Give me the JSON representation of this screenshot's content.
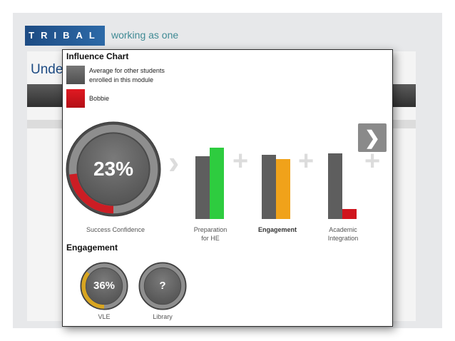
{
  "background": {
    "logo": "TRIBAL",
    "tagline": "working as one",
    "heading": "Unde"
  },
  "popup": {
    "title": "Influence Chart",
    "legend": [
      {
        "label_line1": "Average for other students",
        "label_line2": "enrolled in this module",
        "color": "#5f5f5f"
      },
      {
        "label_line1": "Bobbie",
        "label_line2": "",
        "color": "#d8161e"
      }
    ],
    "next_icon": "chevron-right-icon",
    "connector_arrow": "›",
    "connector_plus": "+",
    "success": {
      "value_text": "23%",
      "value": 0.23,
      "label": "Success Confidence",
      "arc_color": "#cc1d24"
    },
    "factors": [
      {
        "label_line1": "Preparation",
        "label_line2": "for HE",
        "bold": false,
        "average": 0.88,
        "student": 1.0,
        "student_color": "#2ecc3f"
      },
      {
        "label_line1": "Engagement",
        "label_line2": "",
        "bold": true,
        "average": 0.9,
        "student": 0.84,
        "student_color": "#f0a21a"
      },
      {
        "label_line1": "Academic",
        "label_line2": "Integration",
        "bold": false,
        "average": 0.92,
        "student": 0.14,
        "student_color": "#d0141c"
      }
    ],
    "engagement_title": "Engagement",
    "engagement_items": [
      {
        "value_text": "36%",
        "value": 0.36,
        "label": "VLE",
        "arc_color": "#d8a520"
      },
      {
        "value_text": "?",
        "value": 0,
        "label": "Library",
        "arc_color": "#888888"
      }
    ]
  }
}
